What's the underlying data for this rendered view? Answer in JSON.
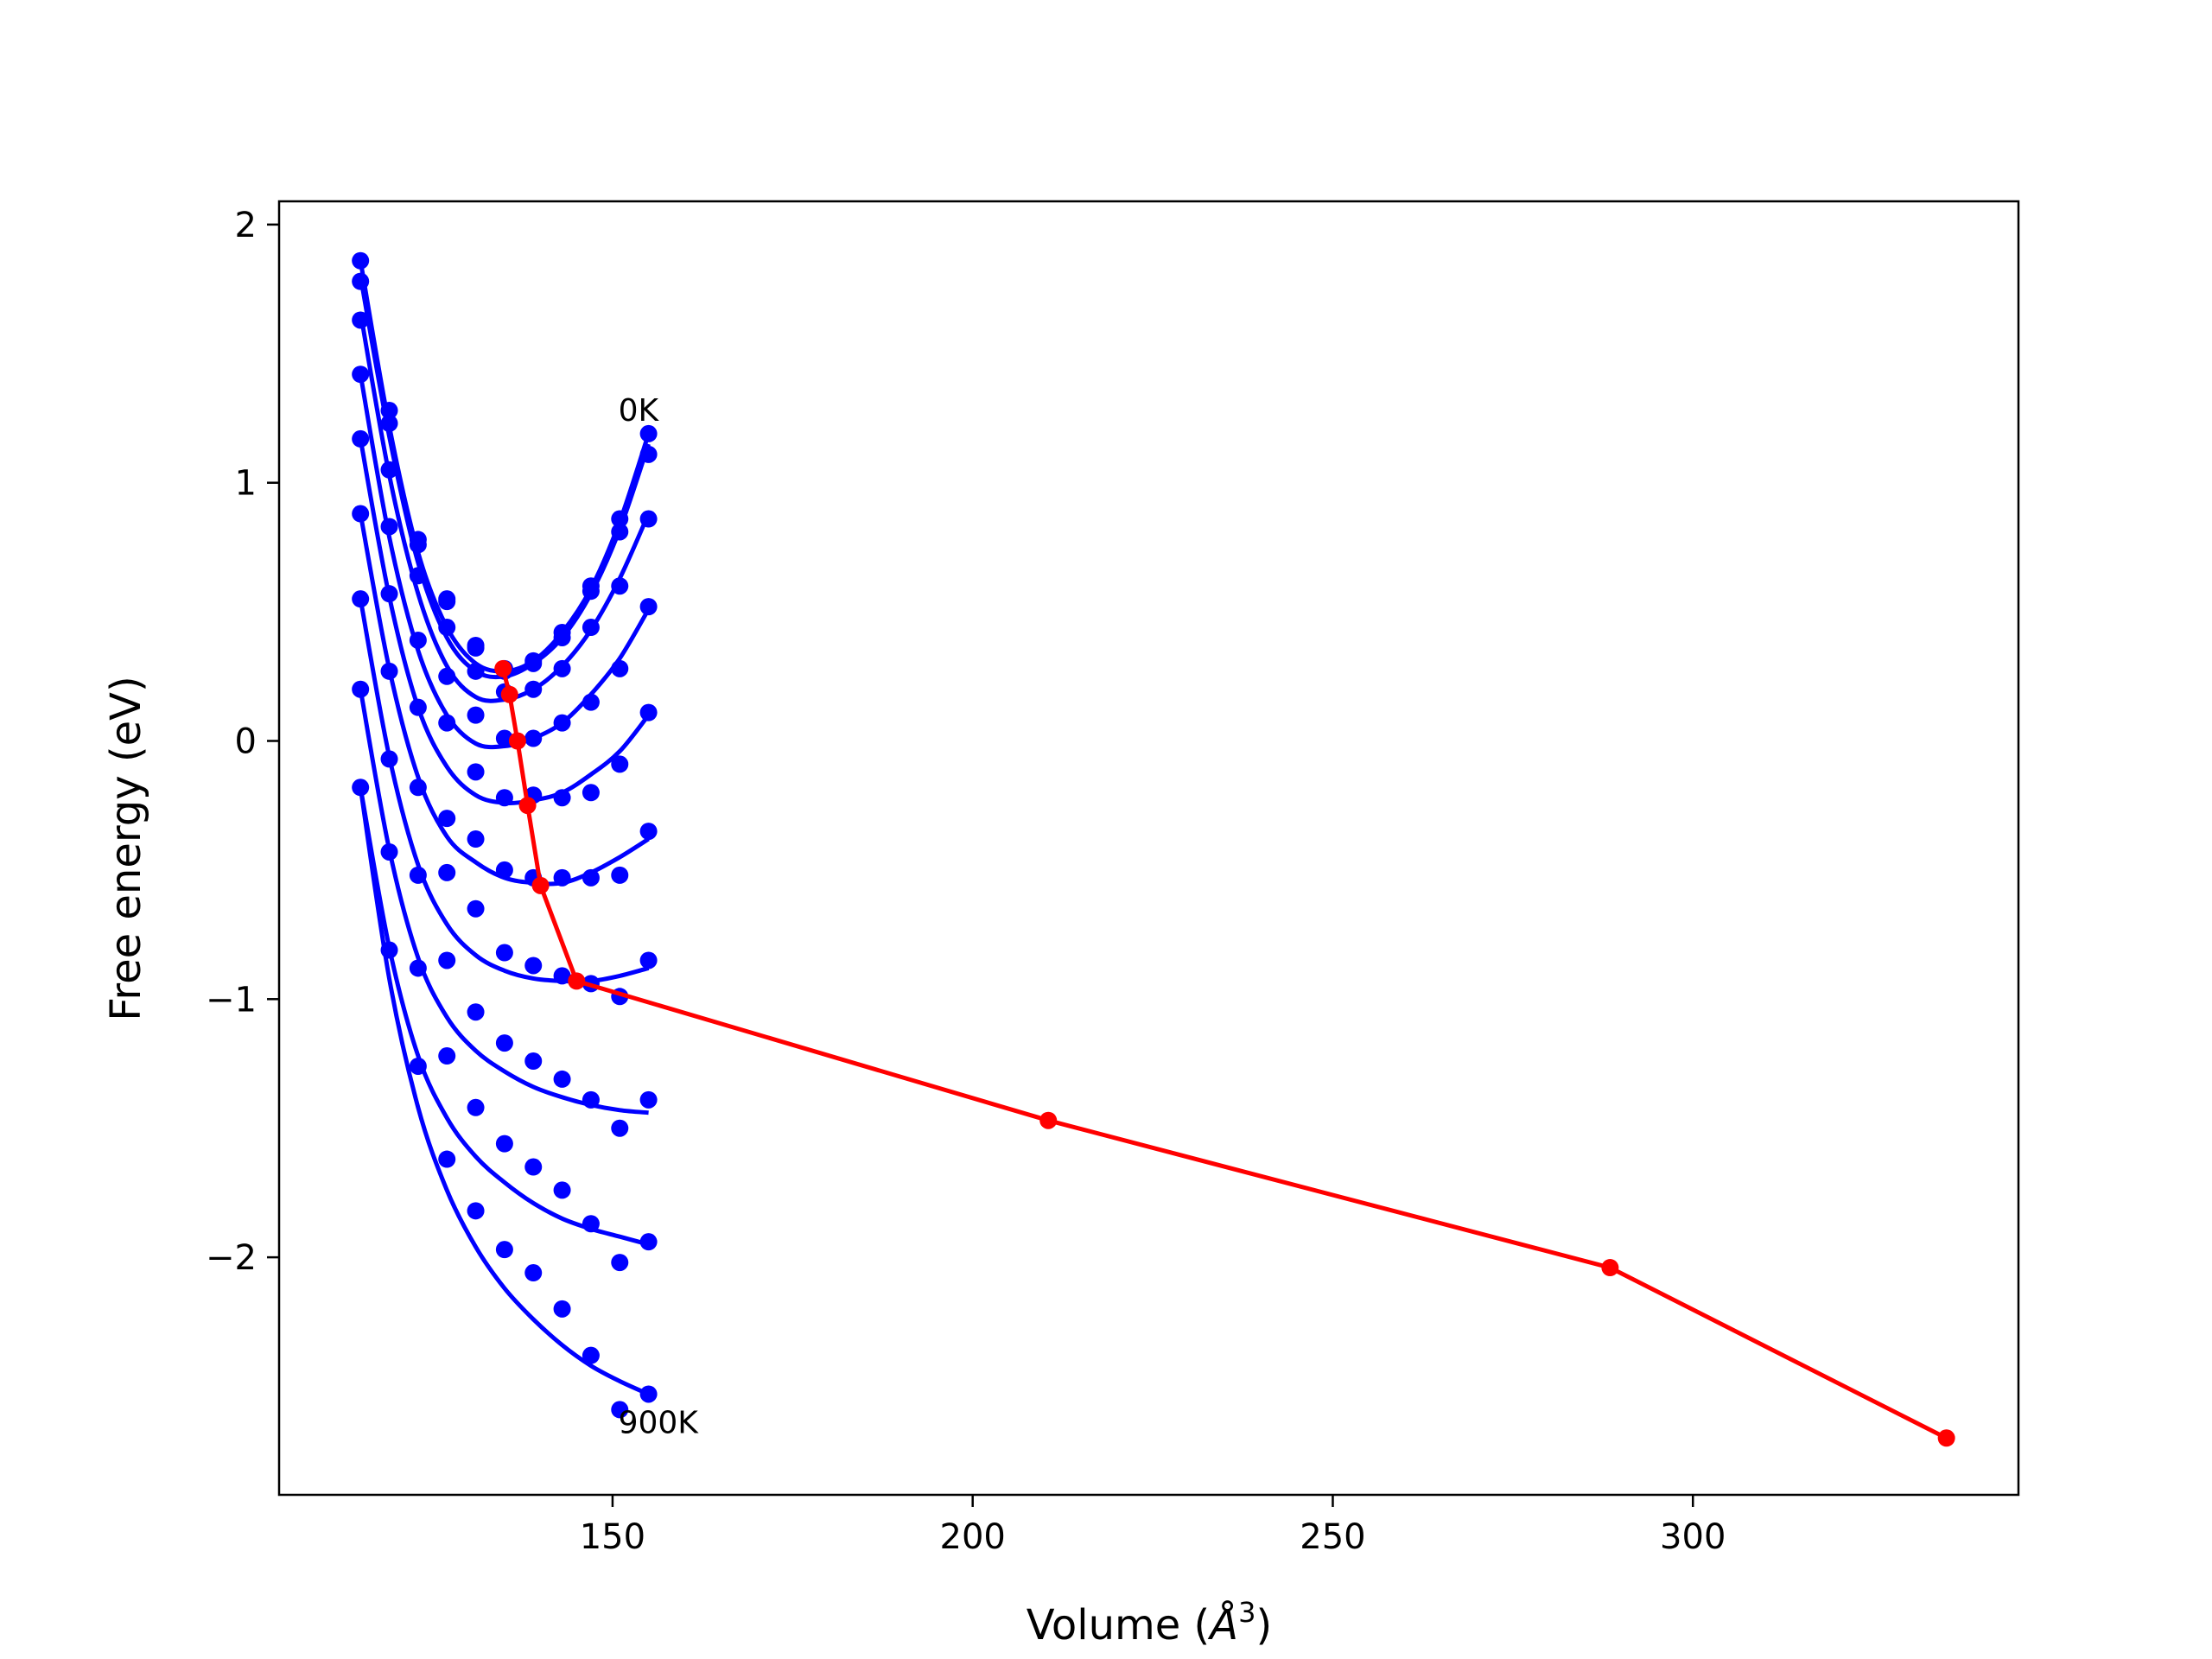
{
  "chart_data": {
    "type": "scatter",
    "xlabel_prefix": "Volume (",
    "xlabel_symbol": "Å",
    "xlabel_exp": "3",
    "xlabel_suffix": ")",
    "ylabel": "Free energy (eV)",
    "xlim": [
      103.7,
      345.2
    ],
    "ylim": [
      -2.92,
      2.09
    ],
    "xticks": [
      150,
      200,
      250,
      300
    ],
    "yticks": [
      2,
      1,
      0,
      -1,
      -2
    ],
    "xtick_labels": [
      "150",
      "200",
      "250",
      "300"
    ],
    "ytick_labels": [
      "2",
      "1",
      "0",
      "−1",
      "−2"
    ],
    "grid": false,
    "annotations": [
      {
        "text": "0K",
        "x": 150.8,
        "y": 1.24
      },
      {
        "text": "900K",
        "x": 150.8,
        "y": -2.68
      }
    ],
    "colors": {
      "isotherms": "#0000ff",
      "minimum_path": "#ff0000",
      "axes": "#000000"
    },
    "volumes": [
      115,
      119,
      123,
      127,
      131,
      135,
      139,
      143,
      147,
      151,
      155
    ],
    "series": [
      {
        "points": [
          1.86,
          1.28,
          0.78,
          0.55,
          0.37,
          0.28,
          0.31,
          0.42,
          0.6,
          0.86,
          1.19
        ],
        "fit": [
          1.86,
          1.22,
          0.73,
          0.44,
          0.3,
          0.27,
          0.31,
          0.42,
          0.59,
          0.85,
          1.19
        ]
      },
      {
        "points": [
          1.78,
          1.23,
          0.76,
          0.54,
          0.36,
          0.27,
          0.3,
          0.4,
          0.58,
          0.81,
          1.11
        ],
        "fit": [
          1.8,
          1.18,
          0.69,
          0.4,
          0.27,
          0.25,
          0.3,
          0.4,
          0.57,
          0.82,
          1.15
        ]
      },
      {
        "points": [
          1.63,
          1.05,
          0.64,
          0.44,
          0.27,
          0.19,
          0.2,
          0.28,
          0.44,
          0.6,
          0.86
        ],
        "fit": [
          1.66,
          1.03,
          0.57,
          0.29,
          0.17,
          0.16,
          0.2,
          0.29,
          0.43,
          0.63,
          0.88
        ]
      },
      {
        "points": [
          1.42,
          0.83,
          0.39,
          0.25,
          0.1,
          0.01,
          0.01,
          0.07,
          0.15,
          0.28,
          0.52
        ],
        "fit": [
          1.42,
          0.79,
          0.35,
          0.1,
          -0.01,
          -0.02,
          0.01,
          0.07,
          0.18,
          0.32,
          0.51
        ]
      },
      {
        "points": [
          1.17,
          0.57,
          0.13,
          0.07,
          -0.12,
          -0.22,
          -0.21,
          -0.22,
          -0.2,
          -0.09,
          0.11
        ],
        "fit": [
          1.17,
          0.56,
          0.13,
          -0.1,
          -0.21,
          -0.24,
          -0.23,
          -0.2,
          -0.13,
          -0.04,
          0.1
        ]
      },
      {
        "points": [
          0.88,
          0.27,
          -0.18,
          -0.3,
          -0.38,
          -0.5,
          -0.53,
          -0.53,
          -0.53,
          -0.52,
          -0.35
        ],
        "fit": [
          0.88,
          0.28,
          -0.14,
          -0.37,
          -0.47,
          -0.53,
          -0.55,
          -0.55,
          -0.51,
          -0.45,
          -0.38
        ]
      },
      {
        "points": [
          0.55,
          -0.07,
          -0.52,
          -0.51,
          -0.65,
          -0.82,
          -0.87,
          -0.91,
          -0.94,
          -0.99,
          -0.85
        ],
        "fit": [
          0.55,
          -0.06,
          -0.48,
          -0.71,
          -0.83,
          -0.89,
          -0.92,
          -0.93,
          -0.93,
          -0.91,
          -0.88
        ]
      },
      {
        "points": [
          0.2,
          -0.43,
          -0.88,
          -0.85,
          -1.05,
          -1.17,
          -1.24,
          -1.31,
          -1.39,
          -1.5,
          -1.39
        ],
        "fit": [
          0.2,
          -0.42,
          -0.84,
          -1.07,
          -1.2,
          -1.28,
          -1.34,
          -1.38,
          -1.41,
          -1.43,
          -1.44
        ]
      },
      {
        "points": [
          -0.18,
          -0.81,
          -1.26,
          -1.22,
          -1.42,
          -1.56,
          -1.65,
          -1.74,
          -1.87,
          -2.02,
          -1.94
        ],
        "fit": [
          -0.18,
          -0.8,
          -1.22,
          -1.46,
          -1.61,
          -1.71,
          -1.79,
          -1.85,
          -1.89,
          -1.92,
          -1.95
        ]
      },
      {
        "points": [
          null,
          null,
          null,
          -1.62,
          -1.82,
          -1.97,
          -2.06,
          -2.2,
          -2.38,
          -2.59,
          -2.53
        ],
        "fit": [
          -0.18,
          -0.92,
          -1.42,
          -1.74,
          -1.96,
          -2.12,
          -2.24,
          -2.34,
          -2.42,
          -2.48,
          -2.53
        ]
      }
    ],
    "minimum_path": {
      "x": [
        134.8,
        135.7,
        136.8,
        138.2,
        140.0,
        145.0,
        210.5,
        288.5,
        335.2
      ],
      "y": [
        0.28,
        0.18,
        0.0,
        -0.25,
        -0.56,
        -0.93,
        -1.47,
        -2.04,
        -2.7
      ]
    }
  }
}
